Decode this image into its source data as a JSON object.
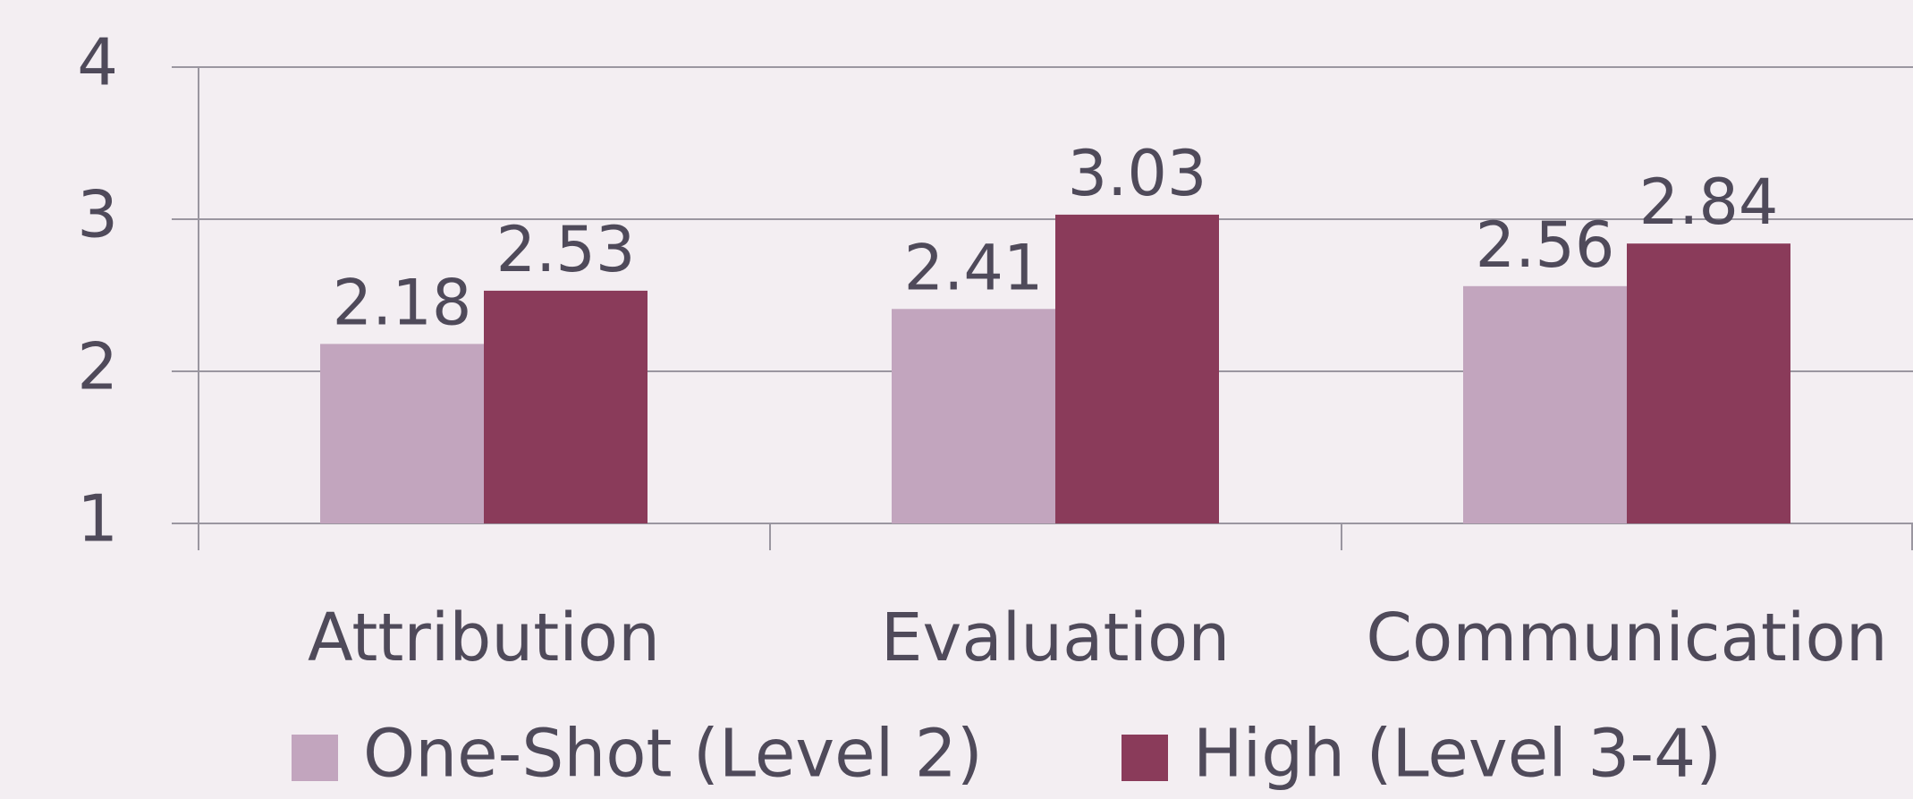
{
  "chart_data": {
    "type": "bar",
    "categories": [
      "Attribution",
      "Evaluation",
      "Communication"
    ],
    "series": [
      {
        "name": "One-Shot (Level 2)",
        "color": "#c2a5be",
        "values": [
          2.18,
          2.41,
          2.56
        ]
      },
      {
        "name": "High (Level 3-4)",
        "color": "#8a3b5a",
        "values": [
          2.53,
          3.03,
          2.84
        ]
      }
    ],
    "ylim": [
      1,
      4
    ],
    "yticks": [
      1,
      2,
      3,
      4
    ],
    "grid": true,
    "legend": "bottom"
  }
}
